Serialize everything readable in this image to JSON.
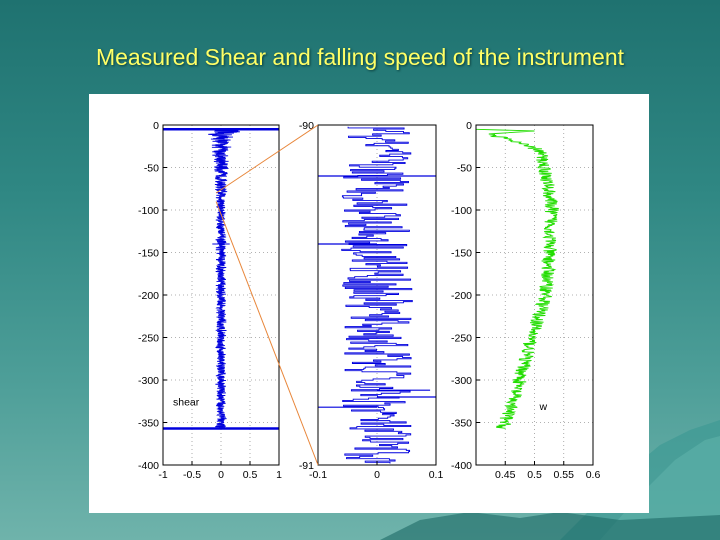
{
  "slide": {
    "title": "Measured Shear and falling speed of the instrument",
    "colors": {
      "background": "#2f8783",
      "title": "#ffff66",
      "zoom_lines": "#e8863a"
    }
  },
  "chart_data": [
    {
      "type": "line",
      "xlabel": "",
      "ylabel": "",
      "title": "",
      "xlim": [
        -1,
        1
      ],
      "ylim": [
        -400,
        0
      ],
      "xticks": [
        "-1",
        "-0.5",
        "0",
        "0.5",
        "1"
      ],
      "yticks": [
        "0",
        "-50",
        "-100",
        "-150",
        "-200",
        "-250",
        "-300",
        "-350",
        "-400"
      ],
      "grid": true,
      "annotation": "shear",
      "color": "#0000dd",
      "series": [
        {
          "depth": [
            -5,
            -20,
            -40,
            -60,
            -80,
            -100,
            -140,
            -180,
            -220,
            -260,
            -300,
            -340,
            -355
          ],
          "envelope": [
            0.35,
            0.18,
            0.14,
            0.12,
            0.1,
            0.09,
            0.09,
            0.09,
            0.09,
            0.09,
            0.09,
            0.09,
            0.1
          ]
        }
      ],
      "outliers": [
        [
          -1,
          -5
        ],
        [
          1,
          -5
        ],
        [
          -1,
          -357
        ],
        [
          1,
          -357
        ],
        [
          -0.15,
          -140
        ],
        [
          0.15,
          -140
        ]
      ]
    },
    {
      "type": "line",
      "xlabel": "",
      "ylabel": "",
      "title": "",
      "xlim": [
        -0.1,
        0.1
      ],
      "ylim": [
        -91,
        -90
      ],
      "xticks": [
        "-0.1",
        "0",
        "0.1"
      ],
      "yticks": [
        "-90",
        "-91"
      ],
      "grid": true,
      "color": "#0000dd",
      "series": [
        {
          "name": "",
          "x_range": [
            -0.06,
            0.06
          ]
        }
      ],
      "outliers": [
        [
          -0.1,
          -90.15
        ],
        [
          0.1,
          -90.15
        ],
        [
          -0.1,
          -90.35
        ],
        [
          -0.1,
          -90.83
        ],
        [
          0.1,
          -90.8
        ],
        [
          0.09,
          -90.78
        ]
      ]
    },
    {
      "type": "line",
      "xlabel": "",
      "ylabel": "",
      "title": "",
      "xlim": [
        0.4,
        0.6
      ],
      "ylim": [
        -400,
        0
      ],
      "xticks": [
        "0.45",
        "0.5",
        "0.55",
        "0.6"
      ],
      "yticks": [
        "0",
        "-50",
        "-100",
        "-150",
        "-200",
        "-250",
        "-300",
        "-350",
        "-400"
      ],
      "grid": true,
      "annotation": "w",
      "color": "#22dd00",
      "series": [
        {
          "depth": [
            -5,
            -30,
            -60,
            -100,
            -150,
            -200,
            -250,
            -300,
            -340,
            -357
          ],
          "w": [
            0.402,
            0.51,
            0.52,
            0.53,
            0.525,
            0.52,
            0.495,
            0.475,
            0.455,
            0.445
          ]
        }
      ]
    }
  ]
}
